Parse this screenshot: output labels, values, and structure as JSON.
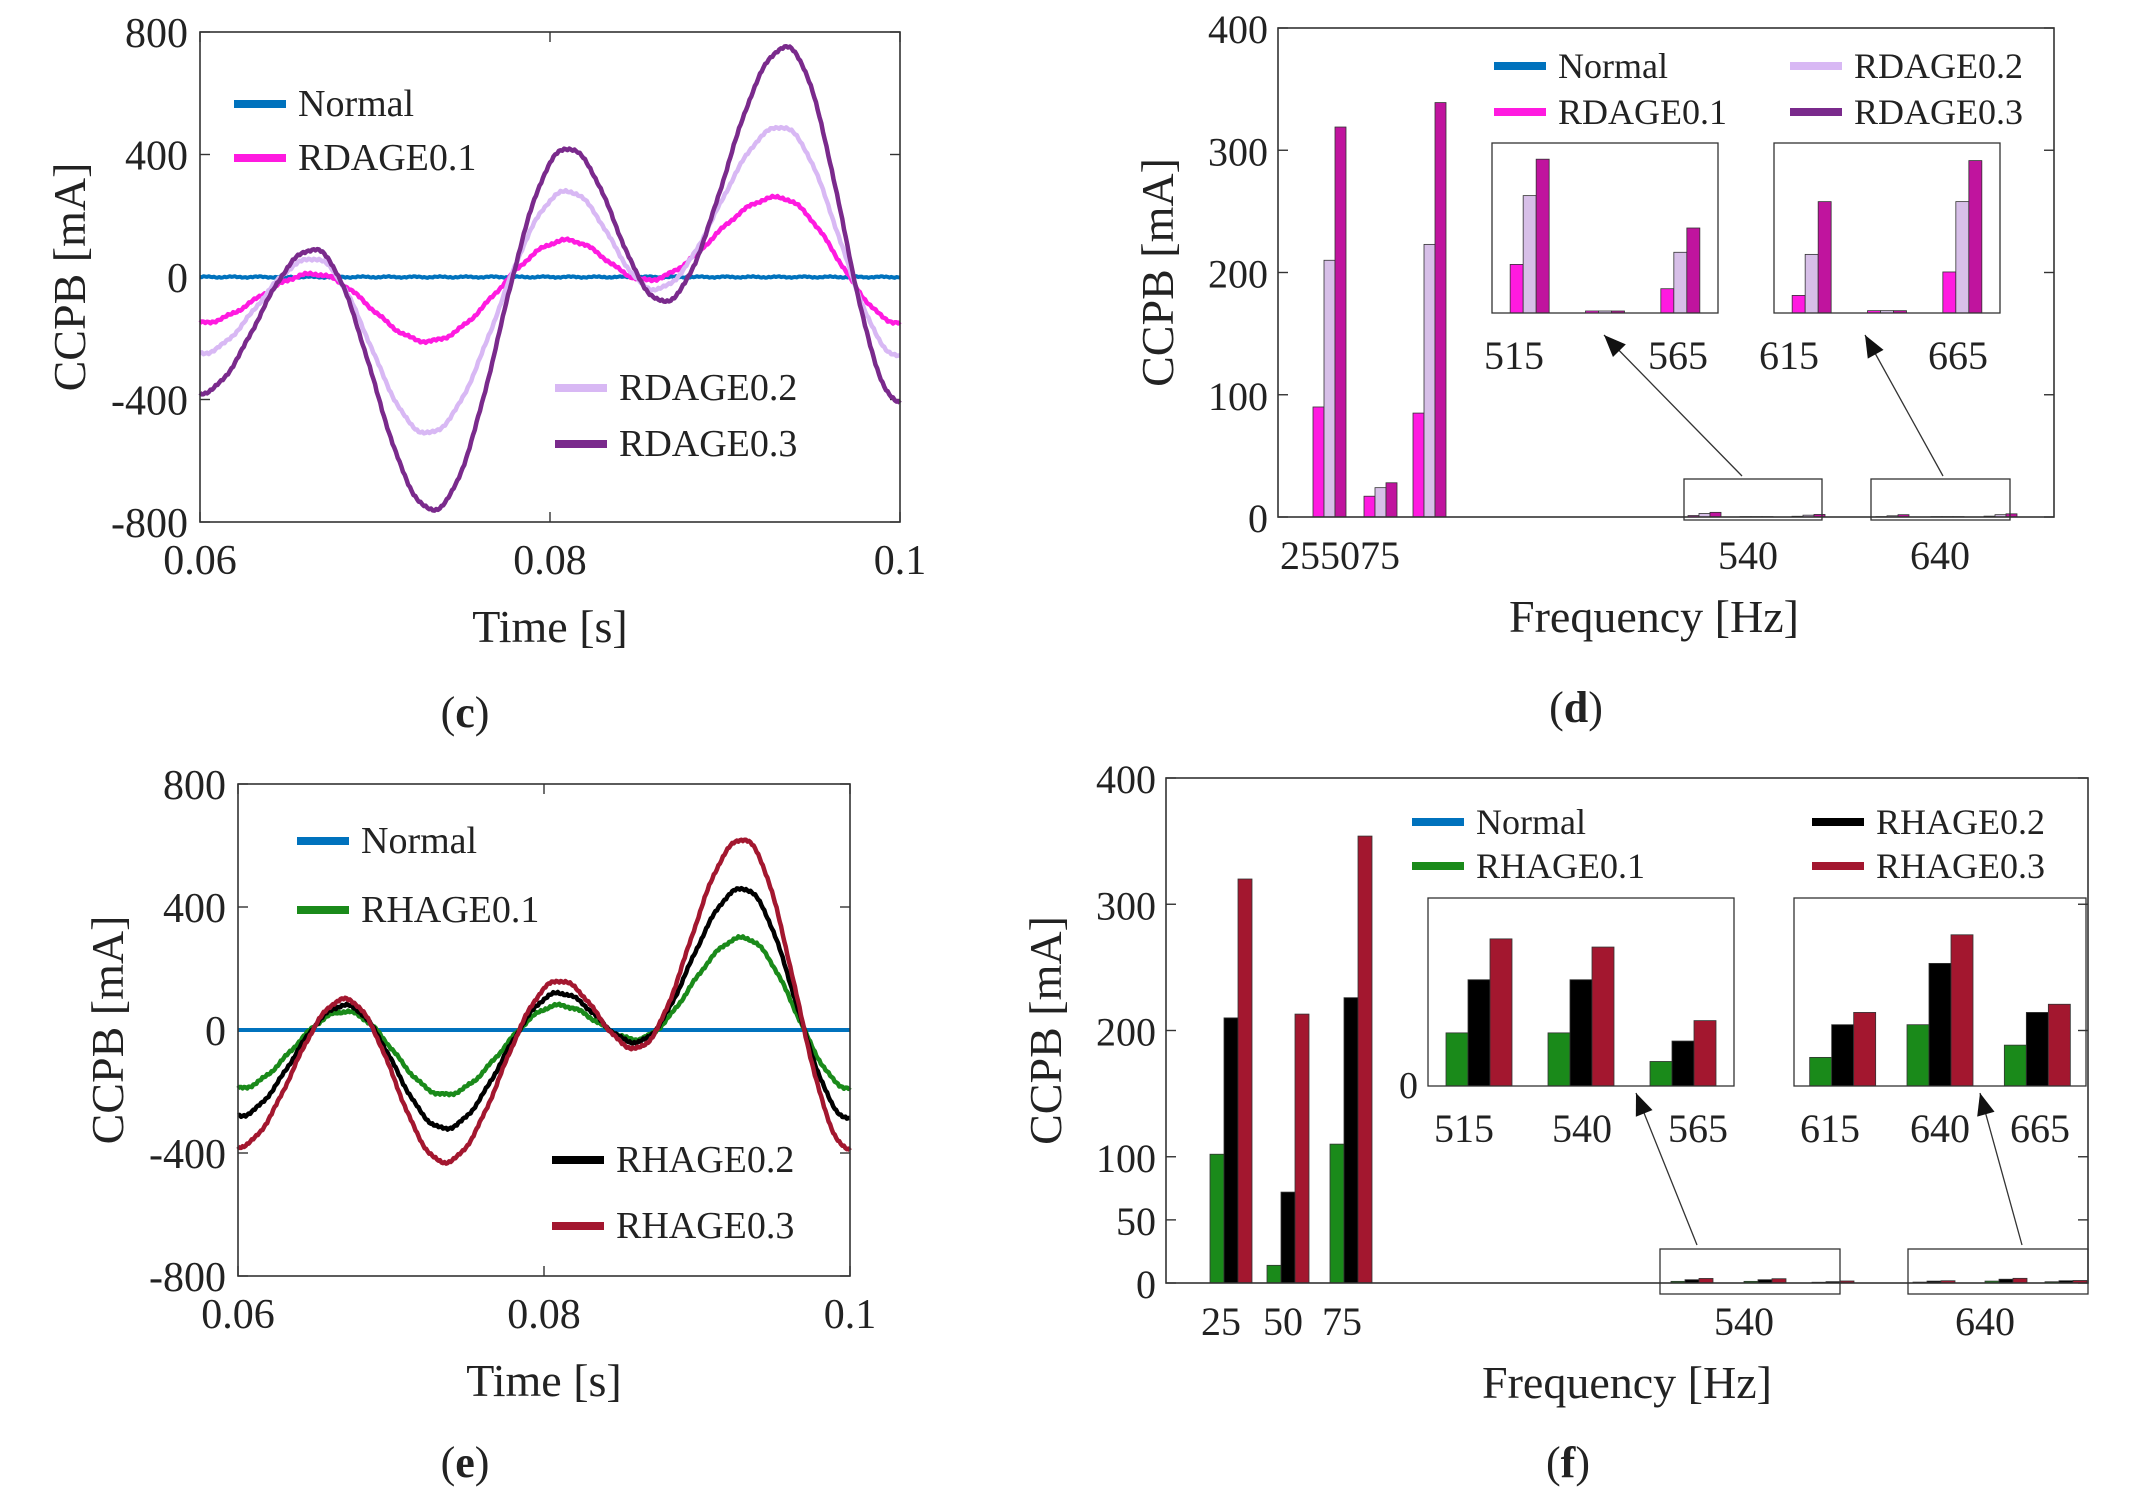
{
  "colors": {
    "normal": "#0072bd",
    "rdage1": "#ff1ae0",
    "rdage2": "#d8b8f4",
    "rdage3": "#7a2a8c",
    "rhage1": "#1a8a1a",
    "rhage2": "#000000",
    "rhage3": "#a3172f",
    "bar1_c": "#ff1ae0",
    "bar2_c": "#d7bfe8",
    "bar3_c": "#c0149e"
  },
  "chart_data": [
    {
      "id": "c",
      "type": "line",
      "panel_label": "c",
      "xlabel": "Time [s]",
      "ylabel": "CCPB [mA]",
      "xlim": [
        0.06,
        0.1
      ],
      "ylim": [
        -800,
        800
      ],
      "xticks": [
        "0.06",
        "0.08",
        "0.1"
      ],
      "xtick_values": [
        0.06,
        0.08,
        0.1
      ],
      "yticks": [
        "-800",
        "-400",
        "0",
        "400",
        "800"
      ],
      "ytick_values": [
        -800,
        -400,
        0,
        400,
        800
      ],
      "legend": [
        {
          "name": "Normal",
          "color_key": "normal"
        },
        {
          "name": "RDAGE0.1",
          "color_key": "rdage1"
        },
        {
          "name": "RDAGE0.2",
          "color_key": "rdage2"
        },
        {
          "name": "RDAGE0.3",
          "color_key": "rdage3"
        }
      ],
      "series": [
        {
          "name": "Normal",
          "color_key": "normal",
          "model": {
            "a": 0,
            "b": 0,
            "c": 0
          }
        },
        {
          "name": "RDAGE0.1",
          "color_key": "rdage1",
          "model": {
            "a": 180,
            "b": 40,
            "c": -60
          },
          "points": [
            [
              0.06,
              -150
            ],
            [
              0.0665,
              10
            ],
            [
              0.073,
              -210
            ],
            [
              0.081,
              120
            ],
            [
              0.0855,
              -10
            ],
            [
              0.093,
              260
            ],
            [
              0.1,
              -150
            ]
          ]
        },
        {
          "name": "RDAGE0.2",
          "color_key": "rdage2",
          "model": {
            "a": 350,
            "b": 100,
            "c": -110
          },
          "points": [
            [
              0.06,
              -250
            ],
            [
              0.0665,
              60
            ],
            [
              0.073,
              -510
            ],
            [
              0.081,
              280
            ],
            [
              0.086,
              -40
            ],
            [
              0.0932,
              490
            ],
            [
              0.1,
              -260
            ]
          ]
        },
        {
          "name": "RDAGE0.3",
          "color_key": "rdage3",
          "model": {
            "a": 520,
            "b": 150,
            "c": -140
          },
          "points": [
            [
              0.06,
              -380
            ],
            [
              0.0665,
              90
            ],
            [
              0.0733,
              -760
            ],
            [
              0.081,
              420
            ],
            [
              0.0865,
              -80
            ],
            [
              0.0935,
              750
            ],
            [
              0.1,
              -410
            ]
          ]
        }
      ]
    },
    {
      "id": "d",
      "type": "bar",
      "panel_label": "d",
      "xlabel": "Frequency [Hz]",
      "ylabel": "CCPB [mA]",
      "ylim": [
        0,
        400
      ],
      "yticks": [
        "0",
        "100",
        "200",
        "300",
        "400"
      ],
      "ytick_values": [
        0,
        100,
        200,
        300,
        400
      ],
      "xtick_labels": [
        "25",
        "50",
        "75",
        "540",
        "640"
      ],
      "legend": [
        {
          "name": "Normal",
          "color_key": "normal"
        },
        {
          "name": "RDAGE0.1",
          "color_key": "rdage1"
        },
        {
          "name": "RDAGE0.2",
          "color_key": "rdage2"
        },
        {
          "name": "RDAGE0.3",
          "color_key": "rdage3"
        }
      ],
      "bar_color_keys": [
        "normal",
        "bar1_c",
        "bar2_c",
        "bar3_c"
      ],
      "groups": [
        {
          "label": "25",
          "values": [
            0,
            90,
            210,
            319
          ]
        },
        {
          "label": "50",
          "values": [
            0,
            17,
            24,
            28
          ]
        },
        {
          "label": "75",
          "values": [
            0,
            85,
            223,
            339
          ]
        },
        {
          "label": "515",
          "values": [
            0,
            1.2,
            2.9,
            3.8
          ]
        },
        {
          "label": "540",
          "values": [
            0,
            0.05,
            0.05,
            0.05
          ]
        },
        {
          "label": "565",
          "values": [
            0,
            0.6,
            1.5,
            2.1
          ]
        },
        {
          "label": "615",
          "values": [
            0,
            0.3,
            1.0,
            1.9
          ]
        },
        {
          "label": "640",
          "values": [
            0,
            0.04,
            0.04,
            0.04
          ]
        },
        {
          "label": "665",
          "values": [
            0,
            0.7,
            1.9,
            2.6
          ]
        }
      ],
      "insets": [
        {
          "ticks": [
            "515",
            "565"
          ],
          "groups": [
            "515",
            "540",
            "565"
          ],
          "ylim": [
            0,
            4.2
          ]
        },
        {
          "ticks": [
            "615",
            "665"
          ],
          "groups": [
            "615",
            "640",
            "665"
          ],
          "ylim": [
            0,
            2.9
          ]
        }
      ]
    },
    {
      "id": "e",
      "type": "line",
      "panel_label": "e",
      "xlabel": "Time [s]",
      "ylabel": "CCPB [mA]",
      "xlim": [
        0.06,
        0.1
      ],
      "ylim": [
        -800,
        800
      ],
      "xticks": [
        "0.06",
        "0.08",
        "0.1"
      ],
      "xtick_values": [
        0.06,
        0.08,
        0.1
      ],
      "yticks": [
        "-800",
        "-400",
        "0",
        "400",
        "800"
      ],
      "ytick_values": [
        -800,
        -400,
        0,
        400,
        800
      ],
      "legend": [
        {
          "name": "Normal",
          "color_key": "normal"
        },
        {
          "name": "RHAGE0.1",
          "color_key": "rhage1"
        },
        {
          "name": "RHAGE0.2",
          "color_key": "rhage2"
        },
        {
          "name": "RHAGE0.3",
          "color_key": "rhage3"
        }
      ],
      "series": [
        {
          "name": "Normal",
          "color_key": "normal",
          "points": [
            [
              0.06,
              0
            ],
            [
              0.1,
              0
            ]
          ]
        },
        {
          "name": "RHAGE0.1",
          "color_key": "rhage1",
          "points": [
            [
              0.06,
              -190
            ],
            [
              0.067,
              60
            ],
            [
              0.0735,
              -210
            ],
            [
              0.081,
              80
            ],
            [
              0.086,
              -30
            ],
            [
              0.093,
              300
            ],
            [
              0.1,
              -190
            ]
          ]
        },
        {
          "name": "RHAGE0.2",
          "color_key": "rhage2",
          "points": [
            [
              0.06,
              -280
            ],
            [
              0.067,
              80
            ],
            [
              0.0735,
              -320
            ],
            [
              0.081,
              120
            ],
            [
              0.086,
              -40
            ],
            [
              0.093,
              460
            ],
            [
              0.1,
              -290
            ]
          ]
        },
        {
          "name": "RHAGE0.3",
          "color_key": "rhage3",
          "points": [
            [
              0.06,
              -380
            ],
            [
              0.067,
              100
            ],
            [
              0.0735,
              -430
            ],
            [
              0.081,
              160
            ],
            [
              0.086,
              -60
            ],
            [
              0.093,
              620
            ],
            [
              0.1,
              -390
            ]
          ]
        }
      ]
    },
    {
      "id": "f",
      "type": "bar",
      "panel_label": "f",
      "xlabel": "Frequency [Hz]",
      "ylabel": "CCPB [mA]",
      "ylim": [
        0,
        400
      ],
      "yticks": [
        "0",
        "50",
        "100",
        "200",
        "300",
        "400"
      ],
      "ytick_values": [
        0,
        50,
        100,
        200,
        300,
        400
      ],
      "xtick_labels": [
        "25",
        "50",
        "75",
        "540",
        "640"
      ],
      "legend": [
        {
          "name": "Normal",
          "color_key": "normal"
        },
        {
          "name": "RHAGE0.1",
          "color_key": "rhage1"
        },
        {
          "name": "RHAGE0.2",
          "color_key": "rhage2"
        },
        {
          "name": "RHAGE0.3",
          "color_key": "rhage3"
        }
      ],
      "bar_color_keys": [
        "normal",
        "rhage1",
        "rhage2",
        "rhage3"
      ],
      "groups": [
        {
          "label": "25",
          "values": [
            0,
            102,
            210,
            320
          ]
        },
        {
          "label": "50",
          "values": [
            0,
            14,
            72,
            213
          ]
        },
        {
          "label": "75",
          "values": [
            0,
            110,
            226,
            354
          ]
        },
        {
          "label": "515",
          "values": [
            0,
            1.3,
            2.6,
            3.6
          ]
        },
        {
          "label": "540",
          "values": [
            0,
            1.3,
            2.6,
            3.4
          ]
        },
        {
          "label": "565",
          "values": [
            0,
            0.6,
            1.1,
            1.6
          ]
        },
        {
          "label": "615",
          "values": [
            0,
            0.7,
            1.5,
            1.8
          ]
        },
        {
          "label": "640",
          "values": [
            0,
            1.5,
            3.0,
            3.7
          ]
        },
        {
          "label": "665",
          "values": [
            0,
            1.0,
            1.8,
            2.0
          ]
        }
      ],
      "inset_zero_label": "0",
      "insets": [
        {
          "ticks": [
            "515",
            "540",
            "565"
          ],
          "groups": [
            "515",
            "540",
            "565"
          ],
          "ylim": [
            0,
            4.6
          ]
        },
        {
          "ticks": [
            "615",
            "640",
            "665"
          ],
          "groups": [
            "615",
            "640",
            "665"
          ],
          "ylim": [
            0,
            4.6
          ]
        }
      ]
    }
  ]
}
